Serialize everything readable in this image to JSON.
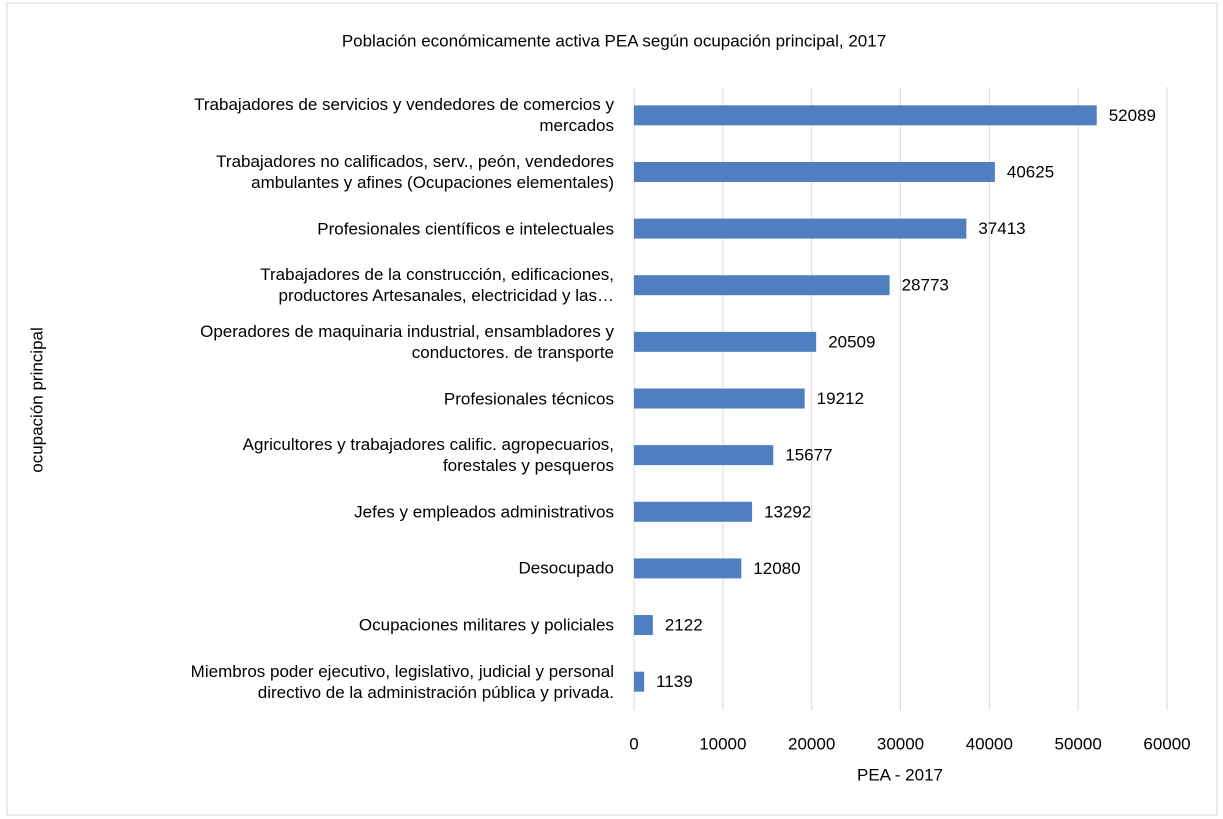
{
  "chart_data": {
    "type": "bar",
    "orientation": "horizontal",
    "title": "Población económicamente activa PEA según ocupación principal, 2017",
    "x_label": "PEA - 2017",
    "y_label": "ocupación principal",
    "categories": [
      "Trabajadores de servicios y vendedores de comercios  y\nmercados",
      "Trabajadores  no calificados, serv., peón, vendedores\nambulantes y afines (Ocupaciones  elementales)",
      "Profesionales científicos e intelectuales",
      "Trabajadores de la construcción, edificaciones,\nproductores  Artesanales, electricidad y las…",
      "Operadores de maquinaria industrial, ensambladores y\nconductores. de transporte",
      "Profesionales técnicos",
      "Agricultores y trabajadores calific. agropecuarios,\nforestales y pesqueros",
      "Jefes y empleados administrativos",
      "Desocupado",
      "Ocupaciones militares y policiales",
      "Miembros poder ejecutivo, legislativo, judicial y personal\ndirectivo  de la administración  pública  y privada."
    ],
    "values": [
      52089,
      40625,
      37413,
      28773,
      20509,
      19212,
      15677,
      13292,
      12080,
      2122,
      1139
    ],
    "color": "#4f7fc0",
    "xlim": [
      0,
      60000
    ],
    "xticks": [
      0,
      10000,
      20000,
      30000,
      40000,
      50000,
      60000
    ],
    "grid": true
  }
}
